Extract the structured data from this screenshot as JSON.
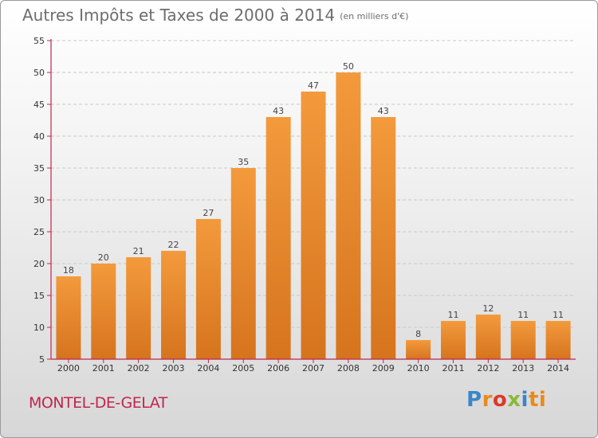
{
  "title": "Autres Impôts et Taxes de 2000 à 2014",
  "subtitle": "(en milliers d'€)",
  "commune": "MONTEL-DE-GELAT",
  "logo": [
    "P",
    "r",
    "o",
    "x",
    "i",
    "ti"
  ],
  "colors": {
    "bar": "#f39a3c",
    "bar_dark": "#d6741e",
    "axis": "#c0254f",
    "grid": "#c8c8c8"
  },
  "chart_data": {
    "type": "bar",
    "title": "Autres Impôts et Taxes de 2000 à 2014",
    "subtitle": "(en milliers d'€)",
    "categories": [
      "2000",
      "2001",
      "2002",
      "2003",
      "2004",
      "2005",
      "2006",
      "2007",
      "2008",
      "2009",
      "2010",
      "2011",
      "2012",
      "2013",
      "2014"
    ],
    "values": [
      18,
      20,
      21,
      22,
      27,
      35,
      43,
      47,
      50,
      43,
      8,
      11,
      12,
      11,
      11
    ],
    "ylim": [
      5,
      55
    ],
    "yticks": [
      5,
      10,
      15,
      20,
      25,
      30,
      35,
      40,
      45,
      50,
      55
    ],
    "grid": true,
    "xlabel": "",
    "ylabel": ""
  }
}
